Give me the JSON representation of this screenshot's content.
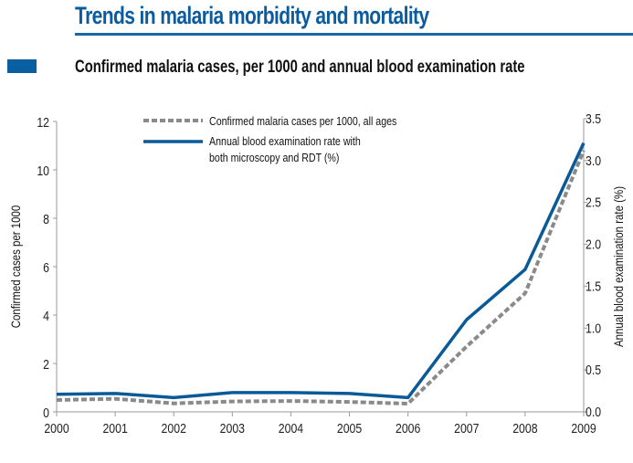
{
  "header": {
    "title": "Trends in malaria morbidity and mortality",
    "subtitle": "Confirmed malaria cases, per 1000 and annual blood examination rate"
  },
  "colors": {
    "brand_blue": "#0b5c9e",
    "series_blue": "#0a5a98",
    "series_grey": "#8a8a8a",
    "axis": "#9a9a9a"
  },
  "chart_data": {
    "type": "line",
    "title": "Confirmed malaria cases, per 1000 and annual blood examination rate",
    "x": [
      "2000",
      "2001",
      "2002",
      "2003",
      "2004",
      "2005",
      "2006",
      "2007",
      "2008",
      "2009"
    ],
    "xlabel": "",
    "ylabel": "Confirmed cases per 1000",
    "ylabel_right": "Annual blood examination rate (%)",
    "ylim": [
      0,
      12
    ],
    "ylim_right": [
      0,
      3.5
    ],
    "yticks": [
      "0",
      "2",
      "4",
      "6",
      "8",
      "10",
      "12"
    ],
    "yticks_right": [
      "0.0",
      "0.5",
      "1.0",
      "1.5",
      "2.0",
      "2.5",
      "3.0",
      "3.5"
    ],
    "grid": false,
    "legend_position": "top",
    "series": [
      {
        "name": "Confirmed malaria cases per 1000, all ages",
        "axis": "left",
        "style": "dashed",
        "color": "#8a8a8a",
        "values": [
          0.49,
          0.54,
          0.35,
          0.43,
          0.45,
          0.41,
          0.34,
          2.7,
          4.9,
          10.8
        ]
      },
      {
        "name": "Annual blood examination rate with both microscopy and RDT (%)",
        "axis": "right",
        "style": "solid",
        "color": "#0a5a98",
        "values": [
          0.21,
          0.22,
          0.17,
          0.23,
          0.23,
          0.22,
          0.17,
          1.1,
          1.7,
          3.21
        ]
      }
    ],
    "legend": [
      {
        "line1": "Confirmed malaria cases per 1000, all ages",
        "line2": ""
      },
      {
        "line1": "Annual blood examination rate with",
        "line2": "both microscopy and RDT (%)"
      }
    ]
  }
}
